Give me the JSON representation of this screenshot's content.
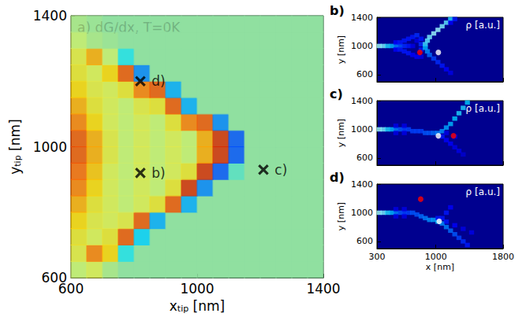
{
  "chart_data": [
    {
      "type": "heatmap",
      "title": "a) dG/dx, T=0K",
      "xlabel": {
        "text": "x",
        "subscript": "tip",
        "unit": "[nm]"
      },
      "ylabel": {
        "text": "y",
        "subscript": "tip",
        "unit": "[nm]"
      },
      "xlim": [
        600,
        1400
      ],
      "ylim": [
        600,
        1400
      ],
      "xticks": [
        600,
        1000,
        1400
      ],
      "yticks": [
        600,
        1000,
        1400
      ],
      "zlim": [
        -1,
        1
      ],
      "x": [
        625,
        675,
        725,
        775,
        825,
        875,
        925,
        975,
        1025,
        1075,
        1125,
        1175,
        1225,
        1275,
        1325,
        1375
      ],
      "y": [
        625,
        675,
        725,
        775,
        825,
        875,
        925,
        975,
        1025,
        1075,
        1125,
        1175,
        1225,
        1275,
        1325,
        1375
      ],
      "z": [
        [
          0.2,
          0.3,
          0.1,
          0,
          0,
          0,
          0,
          0,
          0,
          0,
          0,
          0,
          0,
          0,
          0,
          0
        ],
        [
          0.35,
          0.7,
          0.5,
          -0.2,
          0,
          0,
          0,
          0,
          0,
          0,
          0,
          0,
          0,
          0,
          0,
          0
        ],
        [
          0.4,
          0.3,
          0.4,
          0.8,
          -0.3,
          0,
          0,
          0,
          0,
          0,
          0,
          0,
          0,
          0,
          0,
          0
        ],
        [
          0.5,
          0.35,
          0.3,
          0.35,
          0.8,
          -0.4,
          0,
          0,
          0,
          0,
          0,
          0,
          0,
          0,
          0,
          0
        ],
        [
          0.6,
          0.4,
          0.3,
          0.2,
          0.3,
          0.4,
          0.8,
          -0.4,
          0,
          0,
          0,
          0,
          0,
          0,
          0,
          0
        ],
        [
          0.7,
          0.5,
          0.3,
          0.2,
          0.3,
          0.2,
          0.4,
          0.9,
          -0.5,
          0,
          0,
          0,
          0,
          0,
          0,
          0
        ],
        [
          0.75,
          0.55,
          0.3,
          0.2,
          0.3,
          0.2,
          0.3,
          0.4,
          0.9,
          -0.6,
          -0.1,
          0,
          0,
          0,
          0,
          0
        ],
        [
          0.8,
          0.6,
          0.35,
          0.2,
          0.3,
          0.2,
          0.3,
          0.2,
          0.6,
          0.9,
          -0.6,
          0,
          0,
          0,
          0,
          0
        ],
        [
          0.8,
          0.6,
          0.35,
          0.2,
          0.3,
          0.2,
          0.3,
          0.2,
          0.6,
          0.9,
          -0.6,
          0,
          0,
          0,
          0,
          0
        ],
        [
          0.7,
          0.5,
          0.3,
          0.2,
          0.3,
          0.2,
          0.4,
          0.7,
          0.8,
          -0.5,
          0,
          0,
          0,
          0,
          0,
          0
        ],
        [
          0.6,
          0.4,
          0.3,
          0.2,
          0.35,
          0.4,
          0.8,
          -0.4,
          0,
          0,
          0,
          0,
          0,
          0,
          0,
          0
        ],
        [
          0.5,
          0.35,
          0.3,
          0.4,
          0.7,
          0.8,
          -0.4,
          0,
          0,
          0,
          0,
          0,
          0,
          0,
          0,
          0
        ],
        [
          0.4,
          0.3,
          0.5,
          0.8,
          -0.5,
          0,
          0,
          0,
          0,
          0,
          0,
          0,
          0,
          0,
          0,
          0
        ],
        [
          0.35,
          0.6,
          0.2,
          -0.2,
          0,
          0,
          0,
          0,
          0,
          0,
          0,
          0,
          0,
          0,
          0,
          0
        ],
        [
          0.2,
          0.1,
          0.05,
          0,
          0,
          0,
          0,
          0,
          0,
          0,
          0,
          0,
          0,
          0,
          0,
          0
        ],
        [
          0.1,
          0.05,
          0,
          0,
          0,
          0,
          0,
          0,
          0,
          0,
          0,
          0,
          0,
          0,
          0,
          0
        ]
      ],
      "marker": "x",
      "annotations": [
        {
          "text": "b)",
          "x": 820,
          "y": 920
        },
        {
          "text": "c)",
          "x": 1210,
          "y": 930
        },
        {
          "text": "d)",
          "x": 820,
          "y": 1200
        }
      ]
    },
    {
      "type": "density",
      "label": "b)",
      "text": "ρ [a.u.]",
      "ylabel": "y [nm]",
      "xlim": [
        300,
        1800
      ],
      "ylim": [
        500,
        1400
      ],
      "xticks": [
        300,
        1000,
        1800
      ],
      "yticks": [
        600,
        1000,
        1400
      ],
      "tick_labels": "y",
      "zlim": [
        0,
        1
      ],
      "cell": [
        50,
        50
      ],
      "cells": [
        [
          325,
          1000,
          1
        ],
        [
          375,
          1000,
          0.95
        ],
        [
          425,
          1000,
          0.8
        ],
        [
          475,
          1000,
          0.7
        ],
        [
          525,
          1000,
          0.55
        ],
        [
          575,
          1000,
          0.45
        ],
        [
          625,
          1000,
          0.35
        ],
        [
          675,
          1000,
          0.3
        ],
        [
          525,
          1050,
          0.25
        ],
        [
          525,
          950,
          0.25
        ],
        [
          575,
          1050,
          0.3
        ],
        [
          575,
          950,
          0.3
        ],
        [
          625,
          1075,
          0.3
        ],
        [
          625,
          925,
          0.3
        ],
        [
          675,
          1100,
          0.3
        ],
        [
          675,
          900,
          0.3
        ],
        [
          725,
          1125,
          0.3
        ],
        [
          725,
          875,
          0.25
        ],
        [
          725,
          1000,
          0.2
        ],
        [
          775,
          1150,
          0.35
        ],
        [
          775,
          1075,
          0.2
        ],
        [
          775,
          850,
          0.25
        ],
        [
          825,
          1100,
          0.3
        ],
        [
          825,
          1025,
          0.35
        ],
        [
          825,
          950,
          0.3
        ],
        [
          825,
          850,
          0.2
        ],
        [
          1175,
          1375,
          0.8
        ],
        [
          1125,
          1325,
          0.9
        ],
        [
          1075,
          1275,
          0.95
        ],
        [
          1025,
          1225,
          1
        ],
        [
          975,
          1175,
          1
        ],
        [
          925,
          1125,
          0.95
        ],
        [
          900,
          1075,
          0.9
        ],
        [
          875,
          1025,
          0.85
        ],
        [
          875,
          975,
          0.7
        ],
        [
          900,
          925,
          0.6
        ],
        [
          925,
          875,
          0.5
        ],
        [
          975,
          825,
          0.4
        ],
        [
          1025,
          775,
          0.35
        ],
        [
          1075,
          725,
          0.3
        ],
        [
          1125,
          675,
          0.25
        ],
        [
          1175,
          625,
          0.2
        ],
        [
          1225,
          1375,
          0.3
        ],
        [
          1175,
          1325,
          0.25
        ]
      ],
      "points": [
        {
          "x": 810,
          "y": 910,
          "color": "red"
        },
        {
          "x": 1030,
          "y": 910,
          "color": "white"
        }
      ]
    },
    {
      "type": "density",
      "label": "c)",
      "text": "ρ [a.u.]",
      "ylabel": "y [nm]",
      "xlim": [
        300,
        1800
      ],
      "ylim": [
        500,
        1400
      ],
      "xticks": [
        300,
        1000,
        1800
      ],
      "yticks": [
        600,
        1000,
        1400
      ],
      "tick_labels": "y",
      "zlim": [
        0,
        1
      ],
      "cell": [
        50,
        50
      ],
      "cells": [
        [
          325,
          1000,
          1
        ],
        [
          375,
          1000,
          0.95
        ],
        [
          425,
          1000,
          0.8
        ],
        [
          475,
          1000,
          0.7
        ],
        [
          525,
          1000,
          0.55
        ],
        [
          575,
          1000,
          0.45
        ],
        [
          625,
          1000,
          0.4
        ],
        [
          675,
          1000,
          0.4
        ],
        [
          525,
          1050,
          0.2
        ],
        [
          525,
          950,
          0.2
        ],
        [
          625,
          1050,
          0.2
        ],
        [
          625,
          950,
          0.2
        ],
        [
          725,
          975,
          0.4
        ],
        [
          775,
          975,
          0.4
        ],
        [
          825,
          975,
          0.4
        ],
        [
          875,
          950,
          0.45
        ],
        [
          925,
          950,
          0.45
        ],
        [
          975,
          950,
          0.5
        ],
        [
          1025,
          950,
          0.55
        ],
        [
          1075,
          975,
          0.6
        ],
        [
          1125,
          1025,
          0.65
        ],
        [
          1175,
          1075,
          0.7
        ],
        [
          1225,
          1150,
          0.75
        ],
        [
          1275,
          1225,
          0.8
        ],
        [
          1325,
          1300,
          0.8
        ],
        [
          1375,
          1375,
          0.75
        ],
        [
          1075,
          900,
          0.3
        ],
        [
          1125,
          850,
          0.25
        ],
        [
          1175,
          800,
          0.25
        ],
        [
          1225,
          750,
          0.2
        ],
        [
          1275,
          700,
          0.2
        ],
        [
          1325,
          650,
          0.15
        ],
        [
          1125,
          950,
          0.2
        ],
        [
          1225,
          900,
          0.2
        ]
      ],
      "points": [
        {
          "x": 1030,
          "y": 910,
          "color": "white"
        },
        {
          "x": 1210,
          "y": 910,
          "color": "red"
        }
      ]
    },
    {
      "type": "density",
      "label": "d)",
      "text": "ρ [a.u.]",
      "xlabel": "x [nm]",
      "ylabel": "y [nm]",
      "xlim": [
        300,
        1800
      ],
      "ylim": [
        500,
        1400
      ],
      "xticks": [
        300,
        1000,
        1800
      ],
      "yticks": [
        600,
        1000,
        1400
      ],
      "tick_labels": true,
      "zlim": [
        0,
        1
      ],
      "cell": [
        50,
        50
      ],
      "cells": [
        [
          325,
          1000,
          1
        ],
        [
          375,
          1000,
          0.95
        ],
        [
          425,
          1000,
          0.8
        ],
        [
          475,
          1000,
          0.7
        ],
        [
          525,
          1000,
          0.55
        ],
        [
          575,
          1000,
          0.45
        ],
        [
          625,
          1000,
          0.4
        ],
        [
          675,
          1000,
          0.4
        ],
        [
          525,
          1050,
          0.2
        ],
        [
          525,
          950,
          0.2
        ],
        [
          625,
          1050,
          0.2
        ],
        [
          625,
          950,
          0.2
        ],
        [
          725,
          1000,
          0.45
        ],
        [
          775,
          975,
          0.45
        ],
        [
          825,
          950,
          0.5
        ],
        [
          875,
          925,
          0.55
        ],
        [
          925,
          900,
          0.6
        ],
        [
          975,
          900,
          0.65
        ],
        [
          1025,
          875,
          0.7
        ],
        [
          1075,
          850,
          0.6
        ],
        [
          1125,
          800,
          0.55
        ],
        [
          1175,
          750,
          0.5
        ],
        [
          1225,
          700,
          0.45
        ],
        [
          1275,
          650,
          0.4
        ],
        [
          1325,
          600,
          0.35
        ],
        [
          1375,
          550,
          0.3
        ],
        [
          1025,
          925,
          0.3
        ],
        [
          1125,
          875,
          0.3
        ],
        [
          1225,
          825,
          0.25
        ],
        [
          1325,
          775,
          0.2
        ],
        [
          1425,
          725,
          0.2
        ],
        [
          1075,
          925,
          0.3
        ],
        [
          1125,
          1000,
          0.3
        ],
        [
          1175,
          1075,
          0.25
        ]
      ],
      "points": [
        {
          "x": 820,
          "y": 1190,
          "color": "red"
        },
        {
          "x": 1040,
          "y": 880,
          "color": "white"
        }
      ]
    }
  ]
}
